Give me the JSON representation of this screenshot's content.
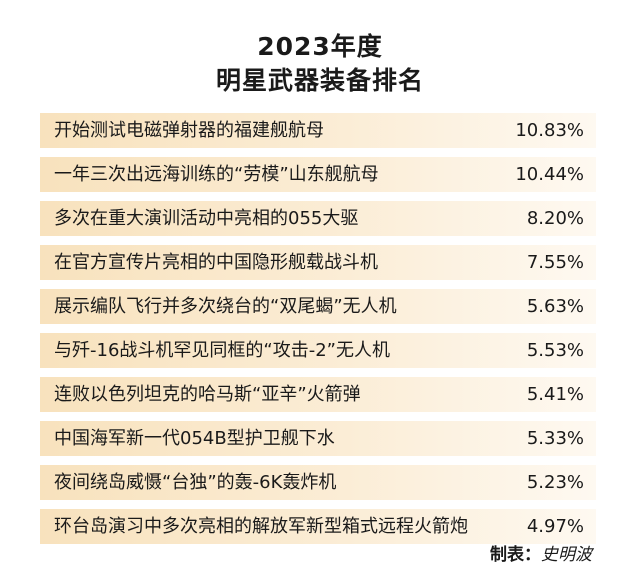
{
  "chart_data": {
    "type": "table",
    "title_lines": [
      "2023年度",
      "明星武器装备排名"
    ],
    "rows": [
      {
        "label": "开始测试电磁弹射器的福建舰航母",
        "value": 10.83,
        "value_text": "10.83%"
      },
      {
        "label": "一年三次出远海训练的“劳模”山东舰航母",
        "value": 10.44,
        "value_text": "10.44%"
      },
      {
        "label": "多次在重大演训活动中亮相的055大驱",
        "value": 8.2,
        "value_text": "8.20%"
      },
      {
        "label": "在官方宣传片亮相的中国隐形舰载战斗机",
        "value": 7.55,
        "value_text": "7.55%"
      },
      {
        "label": "展示编队飞行并多次绕台的“双尾蝎”无人机",
        "value": 5.63,
        "value_text": "5.63%"
      },
      {
        "label": "与歼-16战斗机罕见同框的“攻击-2”无人机",
        "value": 5.53,
        "value_text": "5.53%"
      },
      {
        "label": "连败以色列坦克的哈马斯“亚辛”火箭弹",
        "value": 5.41,
        "value_text": "5.41%"
      },
      {
        "label": "中国海军新一代054B型护卫舰下水",
        "value": 5.33,
        "value_text": "5.33%"
      },
      {
        "label": "夜间绕岛威慑“台独”的轰-6K轰炸机",
        "value": 5.23,
        "value_text": "5.23%"
      },
      {
        "label": "环台岛演习中多次亮相的解放军新型箱式远程火箭炮",
        "value": 4.97,
        "value_text": "4.97%"
      }
    ]
  },
  "credit": {
    "prefix": "制表：",
    "name": "史明波"
  },
  "colors": {
    "row_band_start": "#f8e2bd",
    "row_band_end": "#fef9f1",
    "text": "#1a1a1a",
    "background": "#ffffff"
  }
}
